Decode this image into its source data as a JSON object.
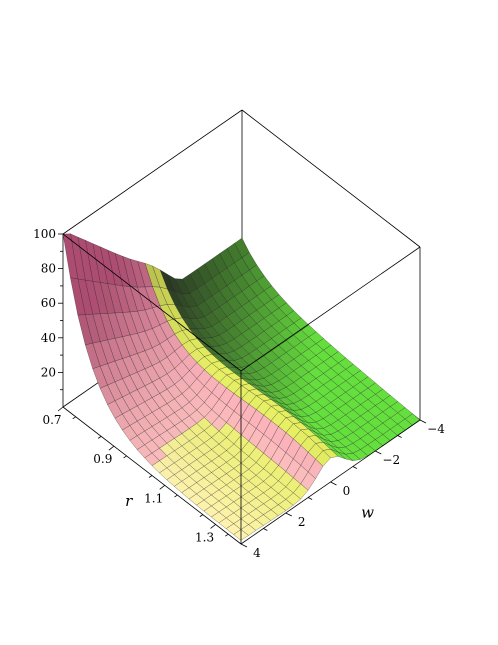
{
  "chart_data": {
    "type": "surface3d",
    "title": "",
    "axes": {
      "r": {
        "label": "r",
        "range": [
          0.7,
          1.4
        ],
        "ticks": [
          0.7,
          0.9,
          1.1,
          1.3
        ],
        "tick_labels": [
          "0.7",
          "0.9",
          "1.1",
          "1.3"
        ]
      },
      "w": {
        "label": "w",
        "range": [
          -4,
          4
        ],
        "ticks": [
          -4,
          -2,
          0,
          2,
          4
        ],
        "tick_labels": [
          "−4",
          "−2",
          "0",
          "2",
          "4"
        ]
      },
      "z": {
        "label": "",
        "range": [
          0,
          100
        ],
        "ticks": [
          20,
          40,
          60,
          80,
          100
        ],
        "tick_labels": [
          "20",
          "40",
          "60",
          "80",
          "100"
        ]
      }
    },
    "surface": {
      "grid_r_points": 25,
      "grid_w_points": 25,
      "samples": [
        {
          "r": 0.7,
          "w": 4,
          "z": 100
        },
        {
          "r": 0.75,
          "w": 4,
          "z": 72
        },
        {
          "r": 0.8,
          "w": 4,
          "z": 48
        },
        {
          "r": 0.9,
          "w": 4,
          "z": 27
        },
        {
          "r": 1.0,
          "w": 4,
          "z": 17
        },
        {
          "r": 1.1,
          "w": 4,
          "z": 11
        },
        {
          "r": 1.2,
          "w": 4,
          "z": 7
        },
        {
          "r": 1.3,
          "w": 4,
          "z": 3
        },
        {
          "r": 1.4,
          "w": 4,
          "z": 1
        },
        {
          "r": 1.4,
          "w": 0,
          "z": 0
        },
        {
          "r": 1.4,
          "w": -4,
          "z": 0
        },
        {
          "r": 0.7,
          "w": -4,
          "z": 0
        }
      ],
      "ridge": {
        "w": 0,
        "z_peak": 24
      }
    },
    "colormap": [
      "#f06a9d",
      "#ffc7c2",
      "#fff3b0",
      "#e4ef5a",
      "#66e03e",
      "#2f3a27"
    ],
    "box": true,
    "grid": false,
    "legend": "none"
  }
}
